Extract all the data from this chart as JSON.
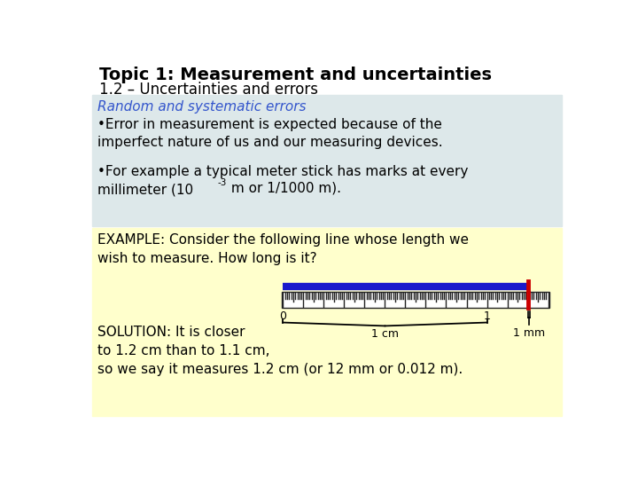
{
  "title_bold": "Topic 1: Measurement and uncertainties",
  "title_sub": "1.2 – Uncertainties and errors",
  "section1_title": "Random and systematic errors",
  "bullet1": "•Error in measurement is expected because of the\nimperfect nature of us and our measuring devices.",
  "bullet2_pre": "•For example a typical meter stick has marks at every\nmillimeter (10",
  "bullet2_sup": "-3",
  "bullet2_end": " m or 1/1000 m).",
  "example_text": "EXAMPLE: Consider the following line whose length we\nwish to measure. How long is it?",
  "solution_text": "SOLUTION: It is closer\nto 1.2 cm than to 1.1 cm,\nso we say it measures 1.2 cm (or 12 mm or 0.012 m).",
  "label_1cm": "1 cm",
  "label_1mm": "1 mm",
  "label_0": "0",
  "label_1": "1",
  "bg_top": "#dde8ea",
  "bg_bottom": "#ffffcc",
  "section1_color": "#3355cc",
  "ruler_color": "#222222",
  "line_color": "#1a1acc",
  "red_mark_color": "#cc0000",
  "white": "#ffffff",
  "black": "#000000",
  "title_fontsize": 14,
  "subtitle_fontsize": 12,
  "body_fontsize": 11,
  "small_fontsize": 9
}
